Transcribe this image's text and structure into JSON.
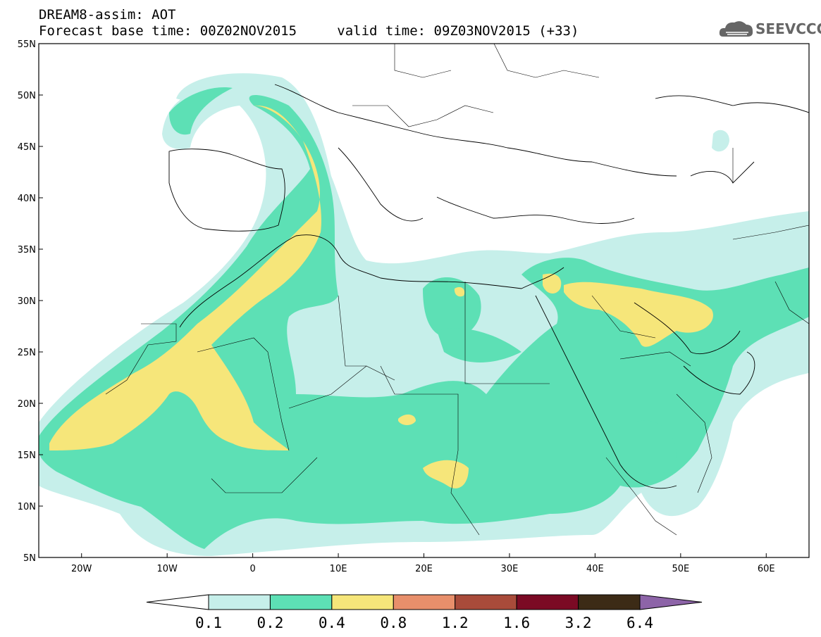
{
  "header": {
    "title_line1": "DREAM8-assim: AOT",
    "forecast_base_label": "Forecast base time: 00Z02NOV2015",
    "valid_time_label": "valid time: 09Z03NOV2015 (+33)"
  },
  "logo": {
    "text": "SEEVCCC",
    "icon": "cloud-logo-icon",
    "color": "#666666"
  },
  "map": {
    "region": "North Africa / Middle East / Europe",
    "lat_ticks": [
      "55N",
      "50N",
      "45N",
      "40N",
      "35N",
      "30N",
      "25N",
      "20N",
      "15N",
      "10N",
      "5N"
    ],
    "lon_ticks": [
      "20W",
      "10W",
      "0",
      "10E",
      "20E",
      "30E",
      "40E",
      "50E",
      "60E"
    ],
    "lon_range": [
      -25,
      65
    ],
    "lat_range": [
      5,
      55
    ]
  },
  "colorbar": {
    "labels": [
      "0.1",
      "0.2",
      "0.4",
      "0.8",
      "1.2",
      "1.6",
      "3.2",
      "6.4"
    ],
    "colors": [
      "#ffffff",
      "#c6efea",
      "#5de0b5",
      "#f6e67a",
      "#e88f6b",
      "#a94b3a",
      "#7b0a24",
      "#3c2b16",
      "#8d64a8"
    ]
  },
  "fields": {
    "color_light": "#c6efea",
    "color_mid": "#5de0b5",
    "color_high": "#f6e67a"
  }
}
